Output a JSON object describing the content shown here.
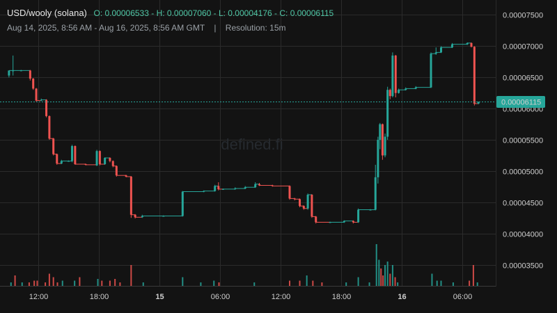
{
  "header": {
    "symbol": "USD/wooly (solana)",
    "ohlc": "O: 0.00006533 - H: 0.00007060 - L: 0.00004176 - C: 0.00006115",
    "date_range": "Aug 14, 2025, 8:56 AM - Aug 16, 2025, 8:56 AM GMT",
    "separator": "|",
    "resolution": "Resolution: 15m"
  },
  "watermark": "defined.fi",
  "colors": {
    "up": "#26a69a",
    "down": "#ef5350",
    "background": "#131313",
    "price_tag": "#26a69a"
  },
  "chart_data": {
    "type": "candlestick",
    "x_ticks": [
      {
        "label": "12:00",
        "t": 3.07
      },
      {
        "label": "18:00",
        "t": 9.07
      },
      {
        "label": "15",
        "t": 15.07,
        "bold": true
      },
      {
        "label": "06:00",
        "t": 21.07
      },
      {
        "label": "12:00",
        "t": 27.07
      },
      {
        "label": "18:00",
        "t": 33.07
      },
      {
        "label": "16",
        "t": 39.07,
        "bold": true
      },
      {
        "label": "06:00",
        "t": 45.07
      }
    ],
    "y_ticks": [
      "0.00003500",
      "0.00004000",
      "0.00004500",
      "0.00005000",
      "0.00005500",
      "0.00006000",
      "0.00006500",
      "0.00007000",
      "0.00007500"
    ],
    "ylim": [
      3.35e-05,
      7.55e-05
    ],
    "last_price": "0.00006115",
    "last_price_value": 6.115e-05,
    "candles": [
      {
        "t": 0.2,
        "o": 6.53e-05,
        "h": 6.6e-05,
        "l": 6.5e-05,
        "c": 6.61e-05
      },
      {
        "t": 0.6,
        "o": 6.61e-05,
        "h": 6.85e-05,
        "l": 6.53e-05,
        "c": 6.61e-05
      },
      {
        "t": 1.4,
        "o": 6.61e-05,
        "h": 6.62e-05,
        "l": 6.6e-05,
        "c": 6.61e-05
      },
      {
        "t": 2.3,
        "o": 6.61e-05,
        "h": 6.62e-05,
        "l": 6.45e-05,
        "c": 6.48e-05
      },
      {
        "t": 2.6,
        "o": 6.48e-05,
        "h": 6.49e-05,
        "l": 6.3e-05,
        "c": 6.32e-05
      },
      {
        "t": 2.9,
        "o": 6.32e-05,
        "h": 6.33e-05,
        "l": 6.11e-05,
        "c": 6.13e-05
      },
      {
        "t": 3.4,
        "o": 6.13e-05,
        "h": 6.16e-05,
        "l": 6.12e-05,
        "c": 6.14e-05
      },
      {
        "t": 3.9,
        "o": 6.14e-05,
        "h": 6.15e-05,
        "l": 5.86e-05,
        "c": 5.88e-05
      },
      {
        "t": 4.2,
        "o": 5.88e-05,
        "h": 5.89e-05,
        "l": 5.5e-05,
        "c": 5.52e-05
      },
      {
        "t": 4.6,
        "o": 5.52e-05,
        "h": 5.53e-05,
        "l": 5.25e-05,
        "c": 5.27e-05
      },
      {
        "t": 4.95,
        "o": 5.27e-05,
        "h": 5.28e-05,
        "l": 5.1e-05,
        "c": 5.12e-05
      },
      {
        "t": 5.4,
        "o": 5.12e-05,
        "h": 5.18e-05,
        "l": 5.11e-05,
        "c": 5.16e-05
      },
      {
        "t": 6.1,
        "o": 5.16e-05,
        "h": 5.17e-05,
        "l": 5.15e-05,
        "c": 5.16e-05
      },
      {
        "t": 6.45,
        "o": 5.16e-05,
        "h": 5.42e-05,
        "l": 5.14e-05,
        "c": 5.4e-05
      },
      {
        "t": 6.75,
        "o": 5.4e-05,
        "h": 5.41e-05,
        "l": 5.1e-05,
        "c": 5.11e-05
      },
      {
        "t": 7.8,
        "o": 5.11e-05,
        "h": 5.12e-05,
        "l": 5.09e-05,
        "c": 5.1e-05
      },
      {
        "t": 8.9,
        "o": 5.09e-05,
        "h": 5.34e-05,
        "l": 5.08e-05,
        "c": 5.32e-05
      },
      {
        "t": 9.2,
        "o": 5.32e-05,
        "h": 5.33e-05,
        "l": 5.09e-05,
        "c": 5.11e-05
      },
      {
        "t": 9.7,
        "o": 5.11e-05,
        "h": 5.22e-05,
        "l": 5.1e-05,
        "c": 5.21e-05
      },
      {
        "t": 10.2,
        "o": 5.21e-05,
        "h": 5.22e-05,
        "l": 5.14e-05,
        "c": 5.16e-05
      },
      {
        "t": 10.5,
        "o": 5.16e-05,
        "h": 5.17e-05,
        "l": 5.06e-05,
        "c": 5.08e-05
      },
      {
        "t": 10.85,
        "o": 5.08e-05,
        "h": 5.09e-05,
        "l": 4.91e-05,
        "c": 4.93e-05
      },
      {
        "t": 11.8,
        "o": 4.93e-05,
        "h": 4.94e-05,
        "l": 4.9e-05,
        "c": 4.91e-05
      },
      {
        "t": 12.3,
        "o": 4.91e-05,
        "h": 4.92e-05,
        "l": 4.25e-05,
        "c": 4.3e-05
      },
      {
        "t": 12.7,
        "o": 4.3e-05,
        "h": 4.31e-05,
        "l": 4.24e-05,
        "c": 4.26e-05
      },
      {
        "t": 13.4,
        "o": 4.26e-05,
        "h": 4.3e-05,
        "l": 4.25e-05,
        "c": 4.28e-05
      },
      {
        "t": 15.5,
        "o": 4.28e-05,
        "h": 4.29e-05,
        "l": 4.27e-05,
        "c": 4.28e-05
      },
      {
        "t": 17.4,
        "o": 4.28e-05,
        "h": 4.68e-05,
        "l": 4.27e-05,
        "c": 4.67e-05
      },
      {
        "t": 19.5,
        "o": 4.67e-05,
        "h": 4.69e-05,
        "l": 4.66e-05,
        "c": 4.68e-05
      },
      {
        "t": 20.6,
        "o": 4.68e-05,
        "h": 4.78e-05,
        "l": 4.67e-05,
        "c": 4.76e-05
      },
      {
        "t": 20.95,
        "o": 4.76e-05,
        "h": 4.82e-05,
        "l": 4.69e-05,
        "c": 4.71e-05
      },
      {
        "t": 21.4,
        "o": 4.71e-05,
        "h": 4.72e-05,
        "l": 4.7e-05,
        "c": 4.71e-05
      },
      {
        "t": 22.6,
        "o": 4.71e-05,
        "h": 4.74e-05,
        "l": 4.7e-05,
        "c": 4.72e-05
      },
      {
        "t": 23.6,
        "o": 4.72e-05,
        "h": 4.76e-05,
        "l": 4.71e-05,
        "c": 4.74e-05
      },
      {
        "t": 24.6,
        "o": 4.74e-05,
        "h": 4.82e-05,
        "l": 4.73e-05,
        "c": 4.79e-05
      },
      {
        "t": 25.0,
        "o": 4.79e-05,
        "h": 4.81e-05,
        "l": 4.76e-05,
        "c": 4.77e-05
      },
      {
        "t": 26.3,
        "o": 4.77e-05,
        "h": 4.78e-05,
        "l": 4.75e-05,
        "c": 4.76e-05
      },
      {
        "t": 28.0,
        "o": 4.76e-05,
        "h": 4.77e-05,
        "l": 4.54e-05,
        "c": 4.56e-05
      },
      {
        "t": 28.5,
        "o": 4.56e-05,
        "h": 4.57e-05,
        "l": 4.53e-05,
        "c": 4.55e-05
      },
      {
        "t": 29.0,
        "o": 4.55e-05,
        "h": 4.56e-05,
        "l": 4.42e-05,
        "c": 4.44e-05
      },
      {
        "t": 29.4,
        "o": 4.44e-05,
        "h": 4.45e-05,
        "l": 4.38e-05,
        "c": 4.4e-05
      },
      {
        "t": 29.8,
        "o": 4.4e-05,
        "h": 4.64e-05,
        "l": 4.38e-05,
        "c": 4.62e-05
      },
      {
        "t": 30.2,
        "o": 4.62e-05,
        "h": 4.63e-05,
        "l": 4.25e-05,
        "c": 4.27e-05
      },
      {
        "t": 30.6,
        "o": 4.27e-05,
        "h": 4.28e-05,
        "l": 4.16e-05,
        "c": 4.18e-05
      },
      {
        "t": 32.0,
        "o": 4.18e-05,
        "h": 4.19e-05,
        "l": 4.17e-05,
        "c": 4.18e-05
      },
      {
        "t": 33.4,
        "o": 4.18e-05,
        "h": 4.21e-05,
        "l": 4.17e-05,
        "c": 4.2e-05
      },
      {
        "t": 34.3,
        "o": 4.2e-05,
        "h": 4.21e-05,
        "l": 4.16e-05,
        "c": 4.18e-05
      },
      {
        "t": 34.8,
        "o": 4.18e-05,
        "h": 4.4e-05,
        "l": 4.17e-05,
        "c": 4.38e-05
      },
      {
        "t": 36.0,
        "o": 4.38e-05,
        "h": 4.39e-05,
        "l": 4.37e-05,
        "c": 4.38e-05
      },
      {
        "t": 36.5,
        "o": 4.38e-05,
        "h": 5.1e-05,
        "l": 4.37e-05,
        "c": 4.9e-05
      },
      {
        "t": 36.75,
        "o": 4.9e-05,
        "h": 5.55e-05,
        "l": 4.8e-05,
        "c": 5.5e-05
      },
      {
        "t": 36.95,
        "o": 5.5e-05,
        "h": 5.77e-05,
        "l": 5.35e-05,
        "c": 5.75e-05
      },
      {
        "t": 37.2,
        "o": 5.75e-05,
        "h": 5.76e-05,
        "l": 5.18e-05,
        "c": 5.25e-05
      },
      {
        "t": 37.45,
        "o": 5.25e-05,
        "h": 5.6e-05,
        "l": 5.22e-05,
        "c": 5.55e-05
      },
      {
        "t": 37.7,
        "o": 5.55e-05,
        "h": 6.35e-05,
        "l": 5.5e-05,
        "c": 6.3e-05
      },
      {
        "t": 37.95,
        "o": 6.3e-05,
        "h": 6.32e-05,
        "l": 6.15e-05,
        "c": 6.2e-05
      },
      {
        "t": 38.2,
        "o": 6.2e-05,
        "h": 6.9e-05,
        "l": 6.18e-05,
        "c": 6.85e-05
      },
      {
        "t": 38.5,
        "o": 6.85e-05,
        "h": 6.86e-05,
        "l": 6.18e-05,
        "c": 6.25e-05
      },
      {
        "t": 38.8,
        "o": 6.25e-05,
        "h": 6.32e-05,
        "l": 6.24e-05,
        "c": 6.3e-05
      },
      {
        "t": 39.5,
        "o": 6.3e-05,
        "h": 6.34e-05,
        "l": 6.29e-05,
        "c": 6.32e-05
      },
      {
        "t": 40.5,
        "o": 6.32e-05,
        "h": 6.36e-05,
        "l": 6.31e-05,
        "c": 6.34e-05
      },
      {
        "t": 42.0,
        "o": 6.34e-05,
        "h": 6.9e-05,
        "l": 6.33e-05,
        "c": 6.88e-05
      },
      {
        "t": 42.5,
        "o": 6.88e-05,
        "h": 6.98e-05,
        "l": 6.86e-05,
        "c": 6.9e-05
      },
      {
        "t": 43.0,
        "o": 6.9e-05,
        "h": 7e-05,
        "l": 6.89e-05,
        "c": 6.98e-05
      },
      {
        "t": 44.1,
        "o": 6.98e-05,
        "h": 7.05e-05,
        "l": 6.97e-05,
        "c": 7.03e-05
      },
      {
        "t": 45.6,
        "o": 7.03e-05,
        "h": 7.06e-05,
        "l": 7.02e-05,
        "c": 7.05e-05
      },
      {
        "t": 46.0,
        "o": 7.05e-05,
        "h": 7.06e-05,
        "l": 6.98e-05,
        "c": 6.99e-05
      },
      {
        "t": 46.3,
        "o": 6.99e-05,
        "h": 7e-05,
        "l": 6.05e-05,
        "c": 6.08e-05
      },
      {
        "t": 46.7,
        "o": 6.08e-05,
        "h": 6.11e-05,
        "l": 6.07e-05,
        "c": 6.11e-05
      }
    ],
    "volume": [
      {
        "t": 0.4,
        "v": 2,
        "up": true
      },
      {
        "t": 0.8,
        "v": 6,
        "up": false
      },
      {
        "t": 1.5,
        "v": 2,
        "up": true
      },
      {
        "t": 2.2,
        "v": 2,
        "up": false
      },
      {
        "t": 2.7,
        "v": 3,
        "up": false
      },
      {
        "t": 3.0,
        "v": 3,
        "up": false
      },
      {
        "t": 3.8,
        "v": 2,
        "up": false
      },
      {
        "t": 4.2,
        "v": 7,
        "up": false
      },
      {
        "t": 4.6,
        "v": 5,
        "up": false
      },
      {
        "t": 5.0,
        "v": 2,
        "up": false
      },
      {
        "t": 5.5,
        "v": 3,
        "up": true
      },
      {
        "t": 6.7,
        "v": 3,
        "up": true
      },
      {
        "t": 7.2,
        "v": 5,
        "up": false
      },
      {
        "t": 9.0,
        "v": 4,
        "up": true
      },
      {
        "t": 9.4,
        "v": 3,
        "up": false
      },
      {
        "t": 10.2,
        "v": 3,
        "up": false
      },
      {
        "t": 10.7,
        "v": 4,
        "up": false
      },
      {
        "t": 11.2,
        "v": 2,
        "up": false
      },
      {
        "t": 12.3,
        "v": 12,
        "up": false
      },
      {
        "t": 13.5,
        "v": 2,
        "up": true
      },
      {
        "t": 17.4,
        "v": 5,
        "up": true
      },
      {
        "t": 19.2,
        "v": 2,
        "up": true
      },
      {
        "t": 20.5,
        "v": 3,
        "up": true
      },
      {
        "t": 21.0,
        "v": 2,
        "up": false
      },
      {
        "t": 24.5,
        "v": 2,
        "up": true
      },
      {
        "t": 28.0,
        "v": 3,
        "up": false
      },
      {
        "t": 29.0,
        "v": 3,
        "up": false
      },
      {
        "t": 29.7,
        "v": 6,
        "up": true
      },
      {
        "t": 30.3,
        "v": 3,
        "up": false
      },
      {
        "t": 31.2,
        "v": 2,
        "up": false
      },
      {
        "t": 33.6,
        "v": 2,
        "up": true
      },
      {
        "t": 34.8,
        "v": 5,
        "up": true
      },
      {
        "t": 35.9,
        "v": 2,
        "up": true
      },
      {
        "t": 36.6,
        "v": 24,
        "up": true
      },
      {
        "t": 36.85,
        "v": 15,
        "up": true
      },
      {
        "t": 37.05,
        "v": 10,
        "up": false
      },
      {
        "t": 37.25,
        "v": 6,
        "up": false
      },
      {
        "t": 37.45,
        "v": 12,
        "up": true
      },
      {
        "t": 37.7,
        "v": 14,
        "up": true
      },
      {
        "t": 37.95,
        "v": 7,
        "up": false
      },
      {
        "t": 38.2,
        "v": 12,
        "up": true
      },
      {
        "t": 38.45,
        "v": 5,
        "up": false
      },
      {
        "t": 38.7,
        "v": 2,
        "up": true
      },
      {
        "t": 42.1,
        "v": 7,
        "up": true
      },
      {
        "t": 42.6,
        "v": 3,
        "up": true
      },
      {
        "t": 43.0,
        "v": 3,
        "up": true
      },
      {
        "t": 44.2,
        "v": 2,
        "up": true
      },
      {
        "t": 45.8,
        "v": 3,
        "up": false
      },
      {
        "t": 46.2,
        "v": 12,
        "up": false
      },
      {
        "t": 46.6,
        "v": 2,
        "up": true
      }
    ]
  }
}
